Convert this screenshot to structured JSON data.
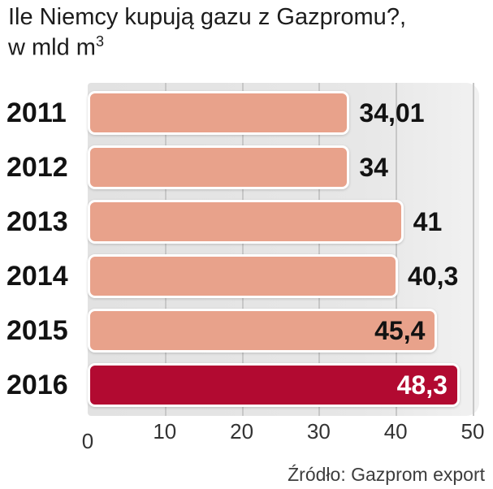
{
  "title": {
    "line1": "Ile Niemcy kupują gazu z Gazpromu?,",
    "line2": "w mld m",
    "line2_sup": "3"
  },
  "source": "Źródło: Gazprom export",
  "colors": {
    "bar": "#e8a28b",
    "bar_highlight": "#b20a31",
    "plot_bg": "#e5e5e5",
    "grid": "#c7c7c7",
    "value_text": "#121212",
    "value_text_highlight": "#ffffff"
  },
  "chart_data": {
    "type": "bar",
    "orientation": "horizontal",
    "title": "Ile Niemcy kupują gazu z Gazpromu?, w mld m³",
    "unit": "mld m³",
    "categories": [
      "2011",
      "2012",
      "2013",
      "2014",
      "2015",
      "2016"
    ],
    "values": [
      34.01,
      34,
      41,
      40.3,
      45.4,
      48.3
    ],
    "value_labels": [
      "34,01",
      "34",
      "41",
      "40,3",
      "45,4",
      "48,3"
    ],
    "label_inside": [
      false,
      false,
      false,
      false,
      true,
      true
    ],
    "highlight_index": 5,
    "xlim": [
      0,
      50
    ],
    "x_ticks": [
      0,
      10,
      20,
      30,
      40,
      50
    ],
    "grid": true,
    "legend": false,
    "source": "Źródło: Gazprom export"
  }
}
